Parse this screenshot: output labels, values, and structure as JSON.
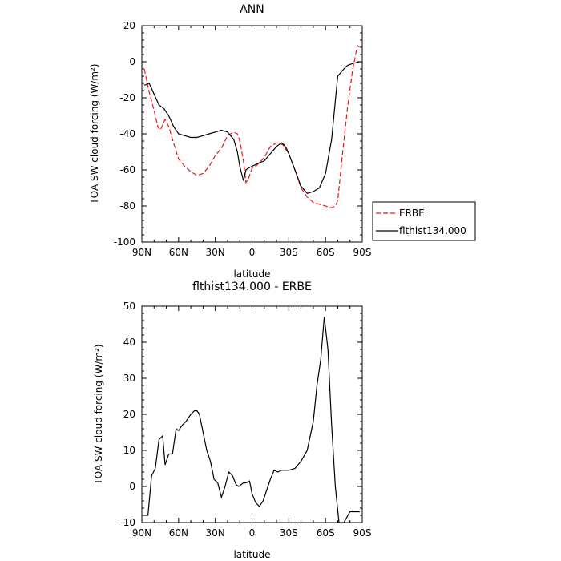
{
  "chart_data": [
    {
      "type": "line",
      "title": "ANN",
      "xlabel": "latitude",
      "ylabel": "TOA SW cloud forcing (W/m²)",
      "x_ticks": [
        "90N",
        "60N",
        "30N",
        "0",
        "30S",
        "60S",
        "90S"
      ],
      "xlim": [
        -90,
        90
      ],
      "ylim": [
        -100,
        20
      ],
      "y_ticks": [
        20,
        0,
        -20,
        -40,
        -60,
        -80,
        -100
      ],
      "legend_position": "outside-right",
      "series": [
        {
          "name": "ERBE",
          "color": "#e8191e",
          "dash": true,
          "x": [
            -88,
            -84,
            -80,
            -77,
            -75,
            -73,
            -71,
            -68,
            -65,
            -60,
            -55,
            -50,
            -45,
            -40,
            -35,
            -30,
            -25,
            -20,
            -15,
            -12,
            -10,
            -7,
            -5,
            -3,
            0,
            3,
            6,
            10,
            15,
            20,
            25,
            30,
            35,
            40,
            45,
            50,
            55,
            60,
            65,
            68,
            70,
            74,
            78,
            82,
            86,
            88
          ],
          "y": [
            -4,
            -17,
            -27,
            -36,
            -38,
            -35,
            -32,
            -36,
            -43,
            -54,
            -58,
            -61,
            -63,
            -62,
            -58,
            -52,
            -48,
            -41,
            -39,
            -40,
            -44,
            -55,
            -67,
            -65,
            -59,
            -58,
            -56,
            -53,
            -47,
            -45,
            -46,
            -51,
            -60,
            -70,
            -75,
            -78,
            -79,
            -80,
            -81,
            -80,
            -77,
            -50,
            -25,
            -5,
            9,
            8
          ]
        },
        {
          "name": "flthist134.000",
          "color": "#000000",
          "dash": false,
          "x": [
            -88,
            -84,
            -80,
            -76,
            -72,
            -68,
            -64,
            -60,
            -55,
            -50,
            -45,
            -40,
            -35,
            -30,
            -25,
            -20,
            -15,
            -12,
            -10,
            -7,
            -5,
            -3,
            0,
            3,
            6,
            10,
            15,
            20,
            24,
            26,
            28,
            30,
            35,
            40,
            45,
            50,
            55,
            60,
            65,
            70,
            75,
            78,
            82,
            85,
            88
          ],
          "y": [
            -13,
            -12,
            -18,
            -24,
            -26,
            -30,
            -36,
            -40,
            -41,
            -42,
            -42,
            -41,
            -40,
            -39,
            -38,
            -39,
            -43,
            -50,
            -58,
            -66,
            -60,
            -59,
            -58,
            -57,
            -56,
            -55,
            -51,
            -47,
            -45,
            -46,
            -48,
            -51,
            -60,
            -69,
            -73,
            -72,
            -70,
            -62,
            -43,
            -8,
            -4,
            -2,
            -1,
            -0.5,
            0
          ]
        }
      ]
    },
    {
      "type": "line",
      "title": "flthist134.000 - ERBE",
      "xlabel": "latitude",
      "ylabel": "TOA SW cloud forcing (W/m²)",
      "x_ticks": [
        "90N",
        "60N",
        "30N",
        "0",
        "30S",
        "60S",
        "90S"
      ],
      "xlim": [
        -90,
        90
      ],
      "ylim": [
        -10,
        50
      ],
      "y_ticks": [
        50,
        40,
        30,
        20,
        10,
        0,
        -10
      ],
      "series": [
        {
          "color": "#000000",
          "dash": false,
          "x": [
            -88,
            -85,
            -82,
            -79,
            -76,
            -73,
            -71,
            -68,
            -65,
            -62,
            -60,
            -57,
            -54,
            -50,
            -47,
            -45,
            -43,
            -40,
            -37,
            -34,
            -31,
            -28,
            -25,
            -22,
            -19,
            -16,
            -13,
            -11,
            -9,
            -7,
            -5,
            -2,
            0,
            3,
            6,
            9,
            12,
            15,
            18,
            21,
            24,
            27,
            30,
            35,
            40,
            45,
            50,
            53,
            56,
            59,
            62,
            65,
            68,
            71,
            75,
            80,
            84,
            86,
            88
          ],
          "y": [
            -8,
            -8,
            3,
            5,
            13,
            14,
            6,
            9,
            9,
            16,
            15.5,
            17,
            18,
            20,
            21,
            21,
            20,
            15,
            10,
            7,
            2,
            1,
            -3,
            0,
            4,
            3,
            0.5,
            0,
            0.5,
            1,
            1,
            1.5,
            -2,
            -4.5,
            -5.5,
            -4,
            -1,
            2,
            4.5,
            4,
            4.5,
            4.5,
            4.5,
            5,
            7,
            10,
            18,
            28,
            35,
            47,
            38,
            17,
            0,
            -10,
            -10,
            -7,
            -7,
            -7,
            -7
          ]
        }
      ]
    }
  ]
}
